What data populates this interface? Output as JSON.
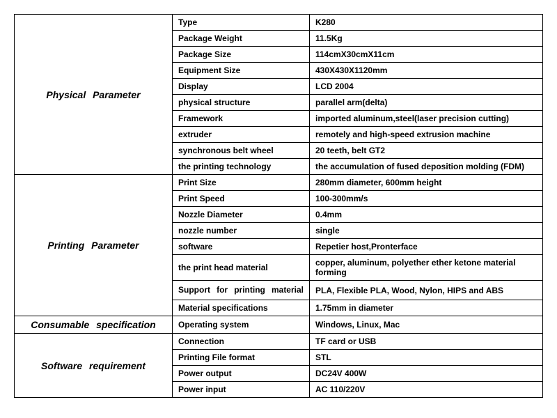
{
  "sections": [
    {
      "category": "Physical   Parameter",
      "rows": [
        {
          "label": "Type",
          "value": "K280"
        },
        {
          "label": "Package Weight",
          "value": "11.5Kg"
        },
        {
          "label": "Package Size",
          "value": "114cmX30cmX11cm"
        },
        {
          "label": "Equipment Size",
          "value": "430X430X1120mm"
        },
        {
          "label": "Display",
          "value": "LCD 2004"
        },
        {
          "label": "physical structure",
          "value": "parallel arm(delta)"
        },
        {
          "label": "Framework",
          "value": "imported aluminum,steel(laser precision cutting)"
        },
        {
          "label": "extruder",
          "value": "remotely and high-speed extrusion machine"
        },
        {
          "label": "synchronous belt wheel",
          "value": "20 teeth, belt GT2"
        },
        {
          "label": "the printing technology",
          "value": " the accumulation of fused deposition molding (FDM)"
        }
      ]
    },
    {
      "category": "Printing   Parameter",
      "rows": [
        {
          "label": "Print Size",
          "value": "280mm diameter, 600mm height"
        },
        {
          "label": "Print Speed",
          "value": "100-300mm/s"
        },
        {
          "label": "Nozzle Diameter",
          "value": " 0.4mm"
        },
        {
          "label": "nozzle number",
          "value": "single"
        },
        {
          "label": "software",
          "value": "Repetier host,Pronterface"
        },
        {
          "label": " the print head material",
          "value": "copper, aluminum, polyether ether ketone material forming"
        },
        {
          "label": "Support for printing material",
          "multiline": true,
          "value": "PLA, Flexible PLA, Wood, Nylon, HIPS and ABS"
        },
        {
          "label": "Material specifications",
          "value": "1.75mm in diameter"
        }
      ]
    },
    {
      "category": "Consumable specification",
      "rows": [
        {
          "label": "Operating system",
          "value": "Windows, Linux, Mac"
        }
      ]
    },
    {
      "category": "Software requirement",
      "rows": [
        {
          "label": "Connection",
          "value": "TF card or USB"
        },
        {
          "label": "Printing File format",
          "value": "STL"
        },
        {
          "label": "Power output",
          "value": "DC24V 400W"
        },
        {
          "label": "Power input",
          "value": "AC 110/220V"
        }
      ]
    }
  ]
}
